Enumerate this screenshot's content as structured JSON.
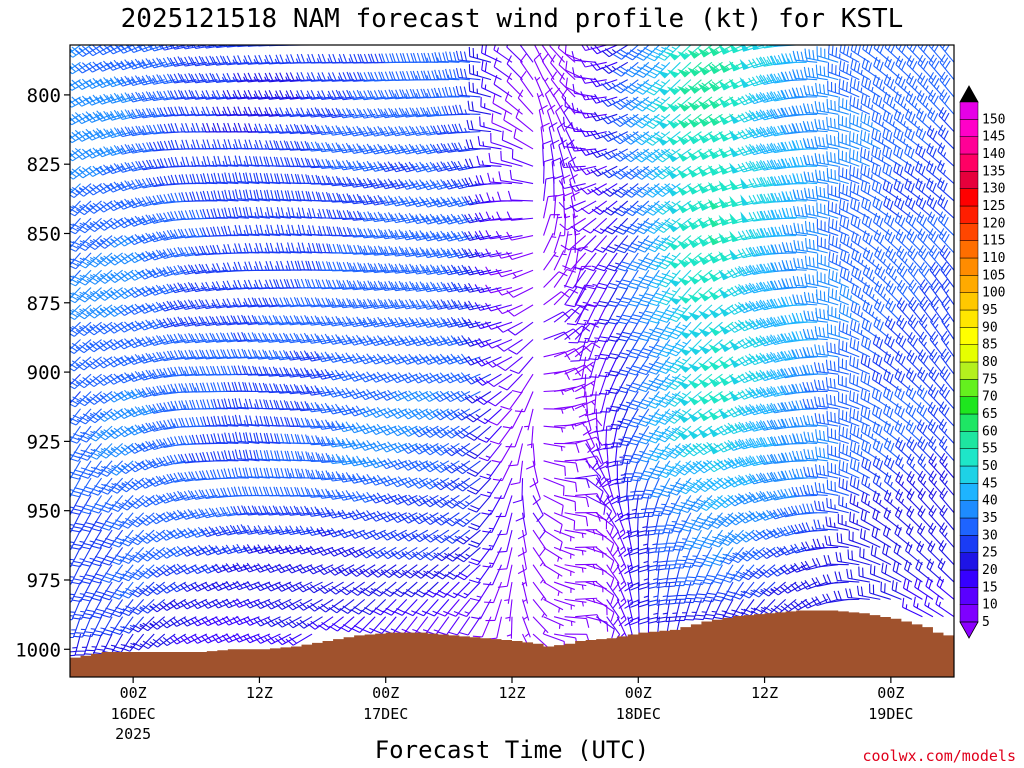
{
  "chart_data": {
    "type": "wind_barb_time_height",
    "title": "2025121518 NAM forecast wind profile (kt) for KSTL",
    "xlabel": "Forecast Time (UTC)",
    "ylabel": "",
    "units": "kt",
    "credit": "coolwx.com/models",
    "y_axis": {
      "variable": "pressure_hPa",
      "ticks": [
        800,
        825,
        850,
        875,
        900,
        925,
        950,
        975,
        1000
      ],
      "range": [
        782,
        1010
      ],
      "inverted": true
    },
    "x_axis": {
      "variable": "forecast_hour",
      "range": [
        -6,
        78
      ],
      "ticks": [
        {
          "hour": 0,
          "label": "00Z",
          "date": "16DEC",
          "year": "2025"
        },
        {
          "hour": 12,
          "label": "12Z",
          "date": "",
          "year": ""
        },
        {
          "hour": 24,
          "label": "00Z",
          "date": "17DEC",
          "year": ""
        },
        {
          "hour": 36,
          "label": "12Z",
          "date": "",
          "year": ""
        },
        {
          "hour": 48,
          "label": "00Z",
          "date": "18DEC",
          "year": ""
        },
        {
          "hour": 60,
          "label": "12Z",
          "date": "",
          "year": ""
        },
        {
          "hour": 72,
          "label": "00Z",
          "date": "19DEC",
          "year": ""
        }
      ]
    },
    "colorbar": {
      "levels": [
        5,
        10,
        15,
        20,
        25,
        30,
        35,
        40,
        45,
        50,
        55,
        60,
        65,
        70,
        75,
        80,
        85,
        90,
        95,
        100,
        105,
        110,
        115,
        120,
        125,
        130,
        135,
        140,
        145,
        150
      ],
      "colors": [
        "#7f00ff",
        "#5a00ff",
        "#3600ff",
        "#1e14e6",
        "#1a3cf5",
        "#1e64ff",
        "#1e8cff",
        "#1eb4ff",
        "#1ed2e6",
        "#1ee6c8",
        "#1ee6a0",
        "#1ee664",
        "#1ee61e",
        "#64f01e",
        "#b4f01e",
        "#e6ff00",
        "#ffff00",
        "#ffe600",
        "#ffc800",
        "#ffaa00",
        "#ff8c00",
        "#ff6e00",
        "#ff4600",
        "#ff1e00",
        "#ff0000",
        "#e6003c",
        "#ff0064",
        "#ff0096",
        "#ff00c8",
        "#e600e6"
      ],
      "under_color": "#8c00ff",
      "over_color": "#000000"
    },
    "terrain_color": "#a0522d",
    "surface_pressure_series": {
      "hours": [
        -6,
        -3,
        0,
        3,
        6,
        9,
        12,
        15,
        18,
        21,
        24,
        27,
        30,
        33,
        36,
        38,
        39,
        41,
        42,
        45,
        48,
        51,
        54,
        57,
        60,
        63,
        66,
        69,
        72,
        75,
        76,
        77,
        78
      ],
      "pressure": [
        1003,
        1001,
        1001,
        1001,
        1001,
        1000,
        1000,
        999,
        997,
        995,
        994,
        994,
        995,
        996,
        997,
        998,
        999,
        998,
        997,
        996,
        994,
        993,
        990,
        988,
        987,
        986,
        986,
        987,
        989,
        992,
        994,
        995,
        996
      ]
    },
    "wind_profile": {
      "time_step_hours": 1,
      "pressure_step_hPa": 6.25,
      "description": "Wind barbs plotted every forecast hour from 782 to 1000 hPa above ground; speeds in kt",
      "time_nodes": [
        {
          "hour": -6,
          "dir_upper": 230,
          "dir_lower": 210,
          "spd_upper": 38,
          "spd_lower": 28,
          "spd_low": 22
        },
        {
          "hour": 0,
          "dir_upper": 250,
          "dir_lower": 230,
          "spd_upper": 35,
          "spd_lower": 35,
          "spd_low": 24
        },
        {
          "hour": 6,
          "dir_upper": 265,
          "dir_lower": 260,
          "spd_upper": 28,
          "spd_lower": 33,
          "spd_low": 20
        },
        {
          "hour": 12,
          "dir_upper": 270,
          "dir_lower": 270,
          "spd_upper": 25,
          "spd_lower": 30,
          "spd_low": 18
        },
        {
          "hour": 18,
          "dir_upper": 270,
          "dir_lower": 265,
          "spd_upper": 27,
          "spd_lower": 32,
          "spd_low": 16
        },
        {
          "hour": 24,
          "dir_upper": 265,
          "dir_lower": 250,
          "spd_upper": 30,
          "spd_lower": 36,
          "spd_low": 14
        },
        {
          "hour": 30,
          "dir_upper": 265,
          "dir_lower": 240,
          "spd_upper": 32,
          "spd_lower": 34,
          "spd_low": 12
        },
        {
          "hour": 33,
          "dir_upper": 270,
          "dir_lower": 235,
          "spd_upper": 28,
          "spd_lower": 30,
          "spd_low": 10
        },
        {
          "hour": 36,
          "dir_upper": 300,
          "dir_lower": 200,
          "spd_upper": 12,
          "spd_lower": 10,
          "spd_low": 8
        },
        {
          "hour": 39,
          "dir_upper": 330,
          "dir_lower": 130,
          "spd_upper": 9,
          "spd_lower": 8,
          "spd_low": 6
        },
        {
          "hour": 42,
          "dir_upper": 310,
          "dir_lower": 100,
          "spd_upper": 10,
          "spd_lower": 8,
          "spd_low": 6
        },
        {
          "hour": 45,
          "dir_upper": 260,
          "dir_lower": 160,
          "spd_upper": 14,
          "spd_lower": 12,
          "spd_low": 9
        },
        {
          "hour": 48,
          "dir_upper": 235,
          "dir_lower": 195,
          "spd_upper": 32,
          "spd_lower": 26,
          "spd_low": 16
        },
        {
          "hour": 51,
          "dir_upper": 230,
          "dir_lower": 210,
          "spd_upper": 45,
          "spd_lower": 38,
          "spd_low": 20
        },
        {
          "hour": 54,
          "dir_upper": 235,
          "dir_lower": 225,
          "spd_upper": 55,
          "spd_lower": 45,
          "spd_low": 22
        },
        {
          "hour": 57,
          "dir_upper": 245,
          "dir_lower": 235,
          "spd_upper": 56,
          "spd_lower": 48,
          "spd_low": 24
        },
        {
          "hour": 60,
          "dir_upper": 255,
          "dir_lower": 250,
          "spd_upper": 48,
          "spd_lower": 44,
          "spd_low": 24
        },
        {
          "hour": 63,
          "dir_upper": 265,
          "dir_lower": 260,
          "spd_upper": 42,
          "spd_lower": 40,
          "spd_low": 22
        },
        {
          "hour": 66,
          "dir_upper": 280,
          "dir_lower": 275,
          "spd_upper": 38,
          "spd_lower": 36,
          "spd_low": 20
        },
        {
          "hour": 69,
          "dir_upper": 295,
          "dir_lower": 295,
          "spd_upper": 35,
          "spd_lower": 32,
          "spd_low": 18
        },
        {
          "hour": 72,
          "dir_upper": 305,
          "dir_lower": 310,
          "spd_upper": 33,
          "spd_lower": 30,
          "spd_low": 17
        },
        {
          "hour": 75,
          "dir_upper": 310,
          "dir_lower": 320,
          "spd_upper": 32,
          "spd_lower": 28,
          "spd_low": 16
        },
        {
          "hour": 78,
          "dir_upper": 315,
          "dir_lower": 325,
          "spd_upper": 30,
          "spd_lower": 26,
          "spd_low": 15
        }
      ]
    }
  }
}
